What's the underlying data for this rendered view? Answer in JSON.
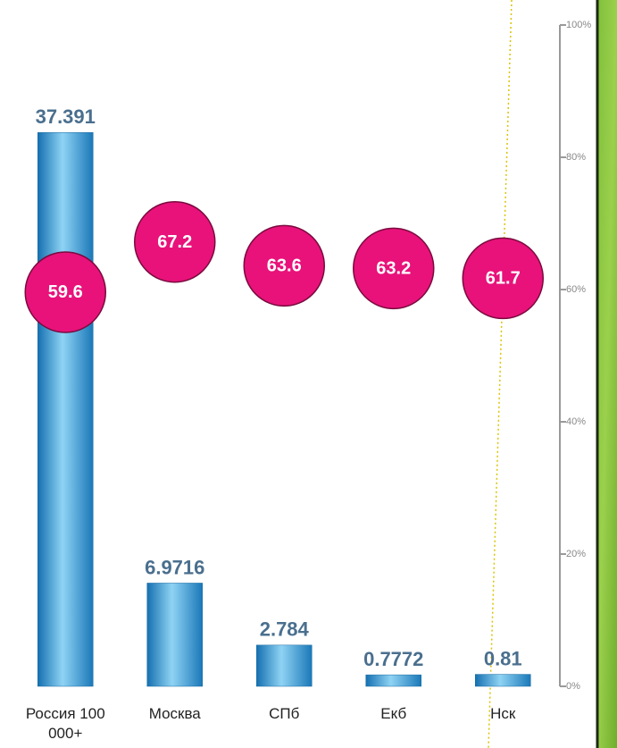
{
  "chart_data": {
    "type": "bar",
    "categories": [
      "Россия 100 000+",
      "Москва",
      "СПб",
      "Екб",
      "Нск"
    ],
    "series": [
      {
        "type": "bar",
        "color": "#2a8fd0",
        "values": [
          37.391,
          6.9716,
          2.784,
          0.7772,
          0.81
        ]
      },
      {
        "type": "scatter",
        "axis": "y2",
        "color": "#e8127a",
        "values": [
          59.6,
          67.2,
          63.6,
          63.2,
          61.7
        ]
      }
    ],
    "ylim": [
      0,
      40
    ],
    "y2lim": [
      0,
      100
    ],
    "y2ticks": [
      {
        "value": 0,
        "label": "0%"
      },
      {
        "value": 20,
        "label": "20%"
      },
      {
        "value": 40,
        "label": "40%"
      },
      {
        "value": 60,
        "label": "60%"
      },
      {
        "value": 80,
        "label": "80%"
      },
      {
        "value": 100,
        "label": "100%"
      }
    ]
  }
}
